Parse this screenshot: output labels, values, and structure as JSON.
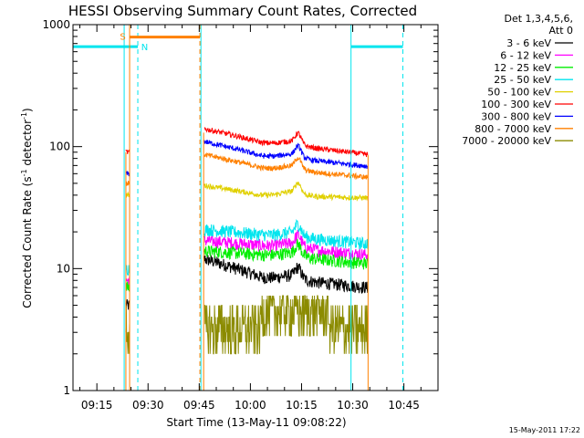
{
  "chart_data": {
    "type": "line",
    "title": "HESSI Observing Summary Count Rates, Corrected",
    "xlabel": "Start Time (13-May-11 09:08:22)",
    "ylabel_main": "Corrected Count Rate (s",
    "ylabel_sup1": "-1",
    "ylabel_mid": " detector",
    "ylabel_sup2": "-1",
    "ylabel_end": ")",
    "yscale": "log",
    "ylim": [
      1,
      1000
    ],
    "yticks": [
      {
        "v": 1,
        "label": "1"
      },
      {
        "v": 10,
        "label": "10"
      },
      {
        "v": 100,
        "label": "100"
      },
      {
        "v": 1000,
        "label": "1000"
      }
    ],
    "x_range_min": [
      0,
      107
    ],
    "xticks": [
      {
        "m": 7,
        "label": "09:15"
      },
      {
        "m": 22,
        "label": "09:30"
      },
      {
        "m": 37,
        "label": "09:45"
      },
      {
        "m": 52,
        "label": "10:00"
      },
      {
        "m": 67,
        "label": "10:15"
      },
      {
        "m": 82,
        "label": "10:30"
      },
      {
        "m": 97,
        "label": "10:45"
      }
    ],
    "legend": {
      "header": [
        "Det 1,3,4,5,6,",
        "Att 0"
      ],
      "placement": "right-outside"
    },
    "series": [
      {
        "name": "3 - 6 keV",
        "color": "#000000",
        "values": [
          5,
          12,
          8.5,
          7
        ]
      },
      {
        "name": "6 - 12 keV",
        "color": "#ff00ff",
        "values": [
          8,
          17,
          15.5,
          13
        ]
      },
      {
        "name": "12 - 25 keV",
        "color": "#00ee00",
        "values": [
          7,
          14,
          13,
          11
        ]
      },
      {
        "name": "25 - 50 keV",
        "color": "#00e5ee",
        "values": [
          10,
          21,
          19,
          16
        ]
      },
      {
        "name": "50 - 100 keV",
        "color": "#e0d000",
        "values": [
          40,
          48,
          40,
          38
        ]
      },
      {
        "name": "100 - 300 keV",
        "color": "#ff0000",
        "values": [
          90,
          140,
          108,
          86
        ]
      },
      {
        "name": "300 - 800 keV",
        "color": "#0000ff",
        "values": [
          60,
          110,
          84,
          69
        ]
      },
      {
        "name": "800 - 7000 keV",
        "color": "#ff8000",
        "values": [
          50,
          86,
          67,
          56
        ]
      },
      {
        "name": "7000 - 20000 keV",
        "color": "#8b8b00",
        "values": [
          3,
          2.5,
          3,
          2
        ]
      }
    ],
    "flags": [
      {
        "label": "S",
        "color": "#ff8000"
      },
      {
        "label": "N",
        "color": "#00e5ee"
      }
    ],
    "footer": "15-May-2011 17:22"
  }
}
